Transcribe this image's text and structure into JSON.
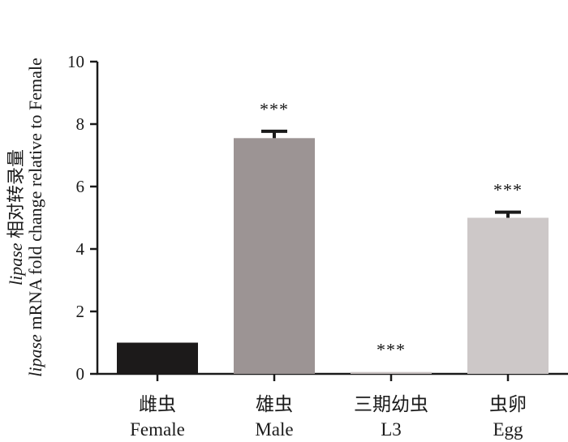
{
  "chart_data": {
    "type": "bar",
    "categories": [
      {
        "cn": "雌虫",
        "en": "Female"
      },
      {
        "cn": "雄虫",
        "en": "Male"
      },
      {
        "cn": "三期幼虫",
        "en": "L3"
      },
      {
        "cn": "虫卵",
        "en": "Egg"
      }
    ],
    "values": [
      1.0,
      7.55,
      0.06,
      5.0
    ],
    "errors": [
      0.0,
      0.22,
      0.0,
      0.18
    ],
    "significance": [
      "",
      "***",
      "***",
      "***"
    ],
    "bar_colors": [
      "#1c1a1a",
      "#9c9494",
      "#c8c2c2",
      "#cdc8c8"
    ],
    "ylim": [
      0,
      10
    ],
    "yticks": [
      "0",
      "2",
      "4",
      "6",
      "8",
      "10"
    ],
    "ylabel_line1": {
      "italic": "lipase",
      "text": " 相对转录量"
    },
    "ylabel_line2": {
      "italic": "lipase",
      "text": " mRNA fold change relative to Female"
    },
    "xlabel": "",
    "title": ""
  }
}
